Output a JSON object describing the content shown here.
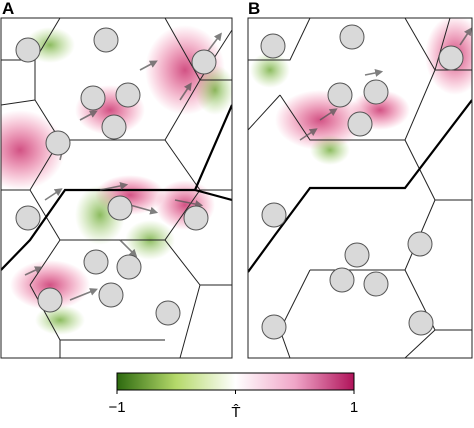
{
  "panels": [
    {
      "label": "A"
    },
    {
      "label": "B"
    }
  ],
  "colorbar": {
    "label": "T̂",
    "lim": [
      -1,
      1
    ],
    "ticks": [
      {
        "value": -1,
        "label": "−1"
      },
      {
        "value": 1,
        "label": "1"
      }
    ]
  }
}
